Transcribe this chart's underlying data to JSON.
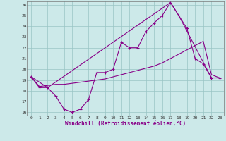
{
  "bg_color": "#cce9e9",
  "grid_color": "#99c4c4",
  "line_color": "#880088",
  "xlabel": "Windchill (Refroidissement éolien,°C)",
  "xlim": [
    0,
    23
  ],
  "ylim": [
    16,
    26
  ],
  "yticks": [
    16,
    17,
    18,
    19,
    20,
    21,
    22,
    23,
    24,
    25,
    26
  ],
  "xticks": [
    0,
    1,
    2,
    3,
    4,
    5,
    6,
    7,
    8,
    9,
    10,
    11,
    12,
    13,
    14,
    15,
    16,
    17,
    18,
    19,
    20,
    21,
    22,
    23
  ],
  "line1_x": [
    0,
    1,
    2,
    3,
    4,
    5,
    6,
    7,
    8,
    9,
    10,
    11,
    12,
    13,
    14,
    15,
    16,
    17,
    18,
    19,
    20,
    21,
    22,
    23
  ],
  "line1_y": [
    19.3,
    18.3,
    18.3,
    17.5,
    16.3,
    16.0,
    16.3,
    17.2,
    19.7,
    19.7,
    20.0,
    22.5,
    22.0,
    22.0,
    23.5,
    24.3,
    25.0,
    26.2,
    25.0,
    23.8,
    21.0,
    20.5,
    19.2,
    19.2
  ],
  "line2_x": [
    0,
    1,
    2,
    3,
    4,
    5,
    6,
    7,
    8,
    9,
    10,
    11,
    12,
    13,
    14,
    15,
    16,
    17,
    18,
    19,
    20,
    21,
    22,
    23
  ],
  "line2_y": [
    19.3,
    18.4,
    18.5,
    18.6,
    18.6,
    18.7,
    18.8,
    18.9,
    19.0,
    19.1,
    19.3,
    19.5,
    19.7,
    19.9,
    20.1,
    20.3,
    20.6,
    21.0,
    21.4,
    21.8,
    22.2,
    22.6,
    19.5,
    19.2
  ],
  "line3_x": [
    0,
    2,
    17,
    18,
    22,
    23
  ],
  "line3_y": [
    19.3,
    18.3,
    26.2,
    25.0,
    19.2,
    19.2
  ]
}
